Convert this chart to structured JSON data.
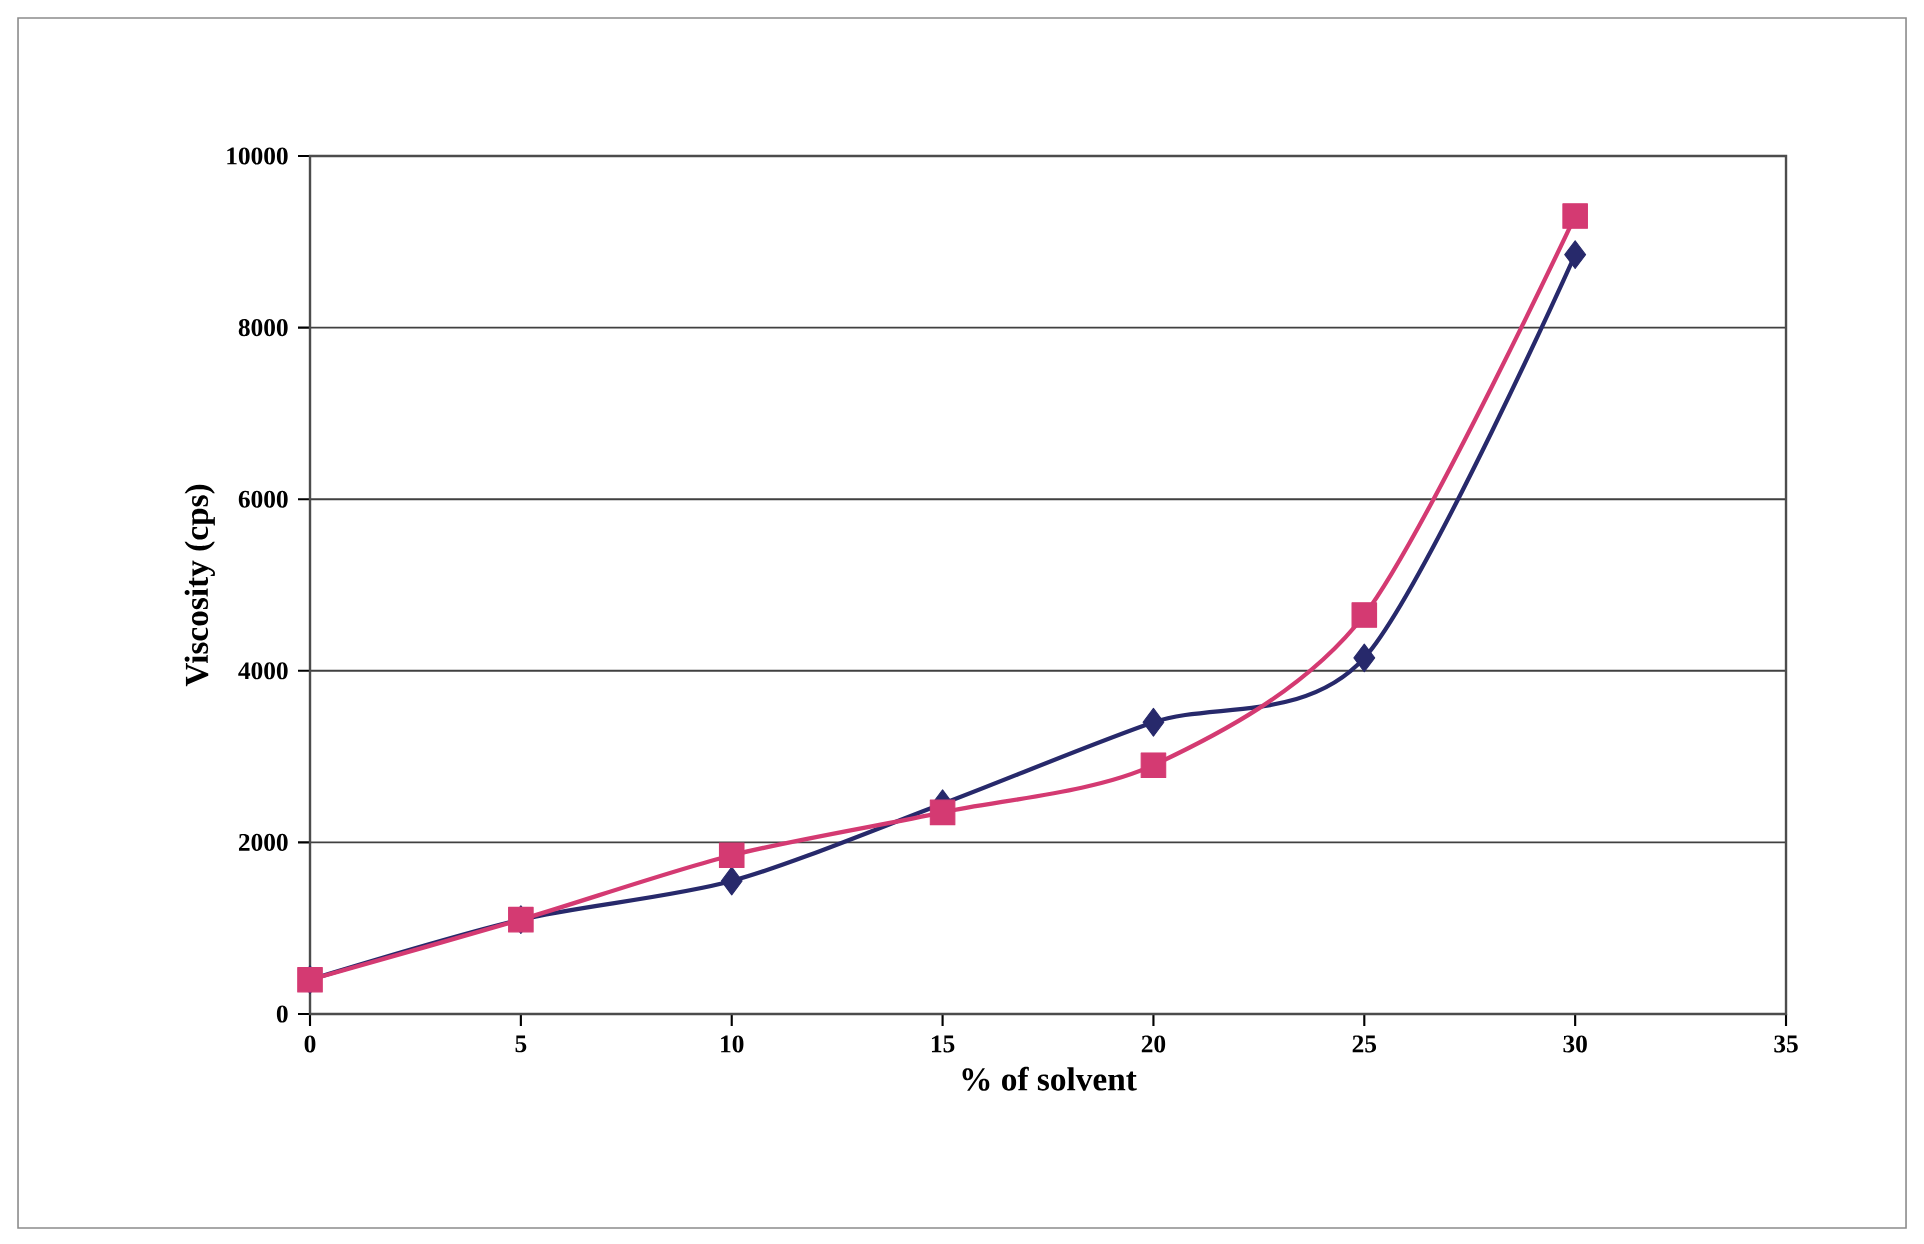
{
  "chart_data": {
    "type": "line",
    "xlabel": "% of solvent",
    "ylabel": "Viscosity (cps)",
    "x": [
      0,
      5,
      10,
      15,
      20,
      25,
      30
    ],
    "series": [
      {
        "color": "#27296b",
        "marker": "diamond",
        "values": [
          400,
          1100,
          1550,
          2450,
          3400,
          4150,
          8850
        ]
      },
      {
        "color": "#d43a72",
        "marker": "square",
        "values": [
          400,
          1100,
          1850,
          2350,
          2900,
          4650,
          9300
        ]
      }
    ],
    "xlim": [
      0,
      35
    ],
    "xticks": [
      0,
      5,
      10,
      15,
      20,
      25,
      30,
      35
    ],
    "ylim": [
      0,
      10000
    ],
    "yticks": [
      0,
      2000,
      4000,
      6000,
      8000,
      10000
    ],
    "grid": "y",
    "line_style": "solid"
  }
}
